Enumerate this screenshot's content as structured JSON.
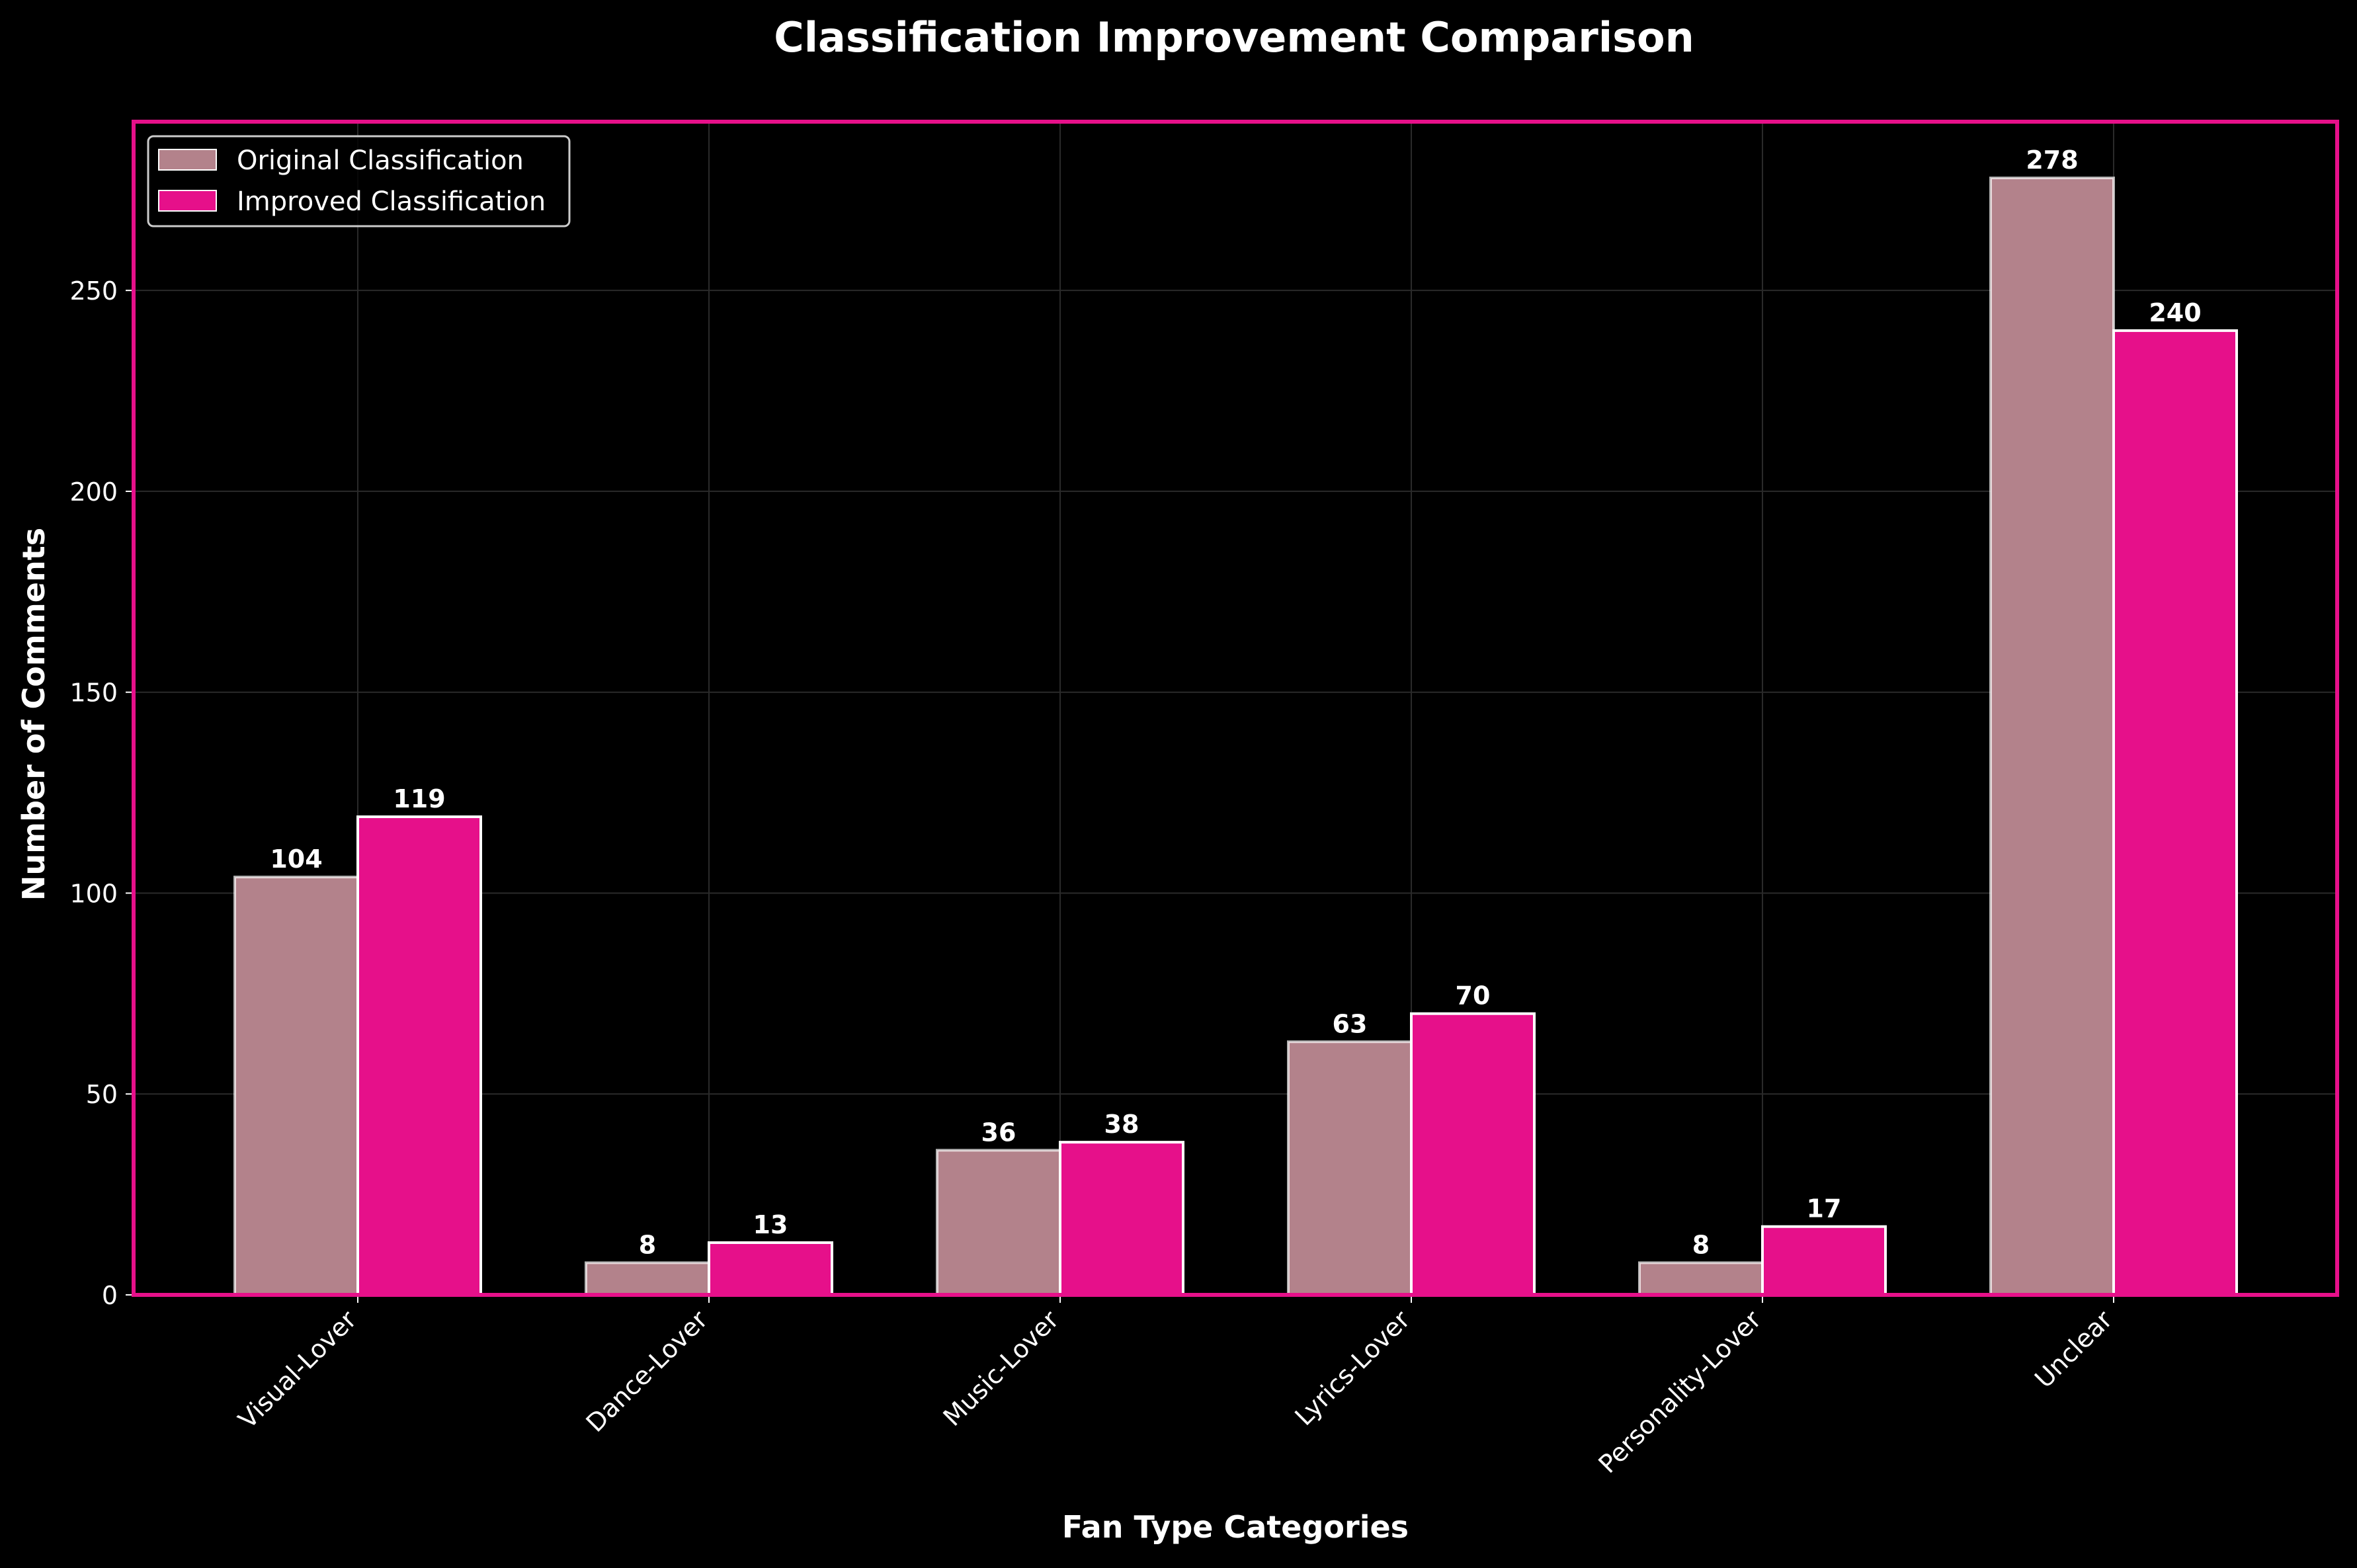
{
  "chart_data": {
    "type": "bar",
    "title": "Classification Improvement Comparison",
    "xlabel": "Fan Type Categories",
    "ylabel": "Number of Comments",
    "categories": [
      "Visual-Lover",
      "Dance-Lover",
      "Music-Lover",
      "Lyrics-Lover",
      "Personality-Lover",
      "Unclear"
    ],
    "series": [
      {
        "name": "Original Classification",
        "values": [
          104,
          8,
          36,
          63,
          8,
          278
        ],
        "color": "#b3828b"
      },
      {
        "name": "Improved Classification",
        "values": [
          119,
          13,
          38,
          70,
          17,
          240
        ],
        "color": "#e6108a"
      }
    ],
    "ylim": [
      0,
      292
    ],
    "yticks": [
      0,
      50,
      100,
      150,
      200,
      250
    ],
    "grid": true,
    "legend_position": "top-left",
    "colors": {
      "background": "#000000",
      "frame": "#e6108a",
      "text": "#ffffff",
      "bar_edge": "#ffffff",
      "grid": "#2a2a2a"
    }
  }
}
